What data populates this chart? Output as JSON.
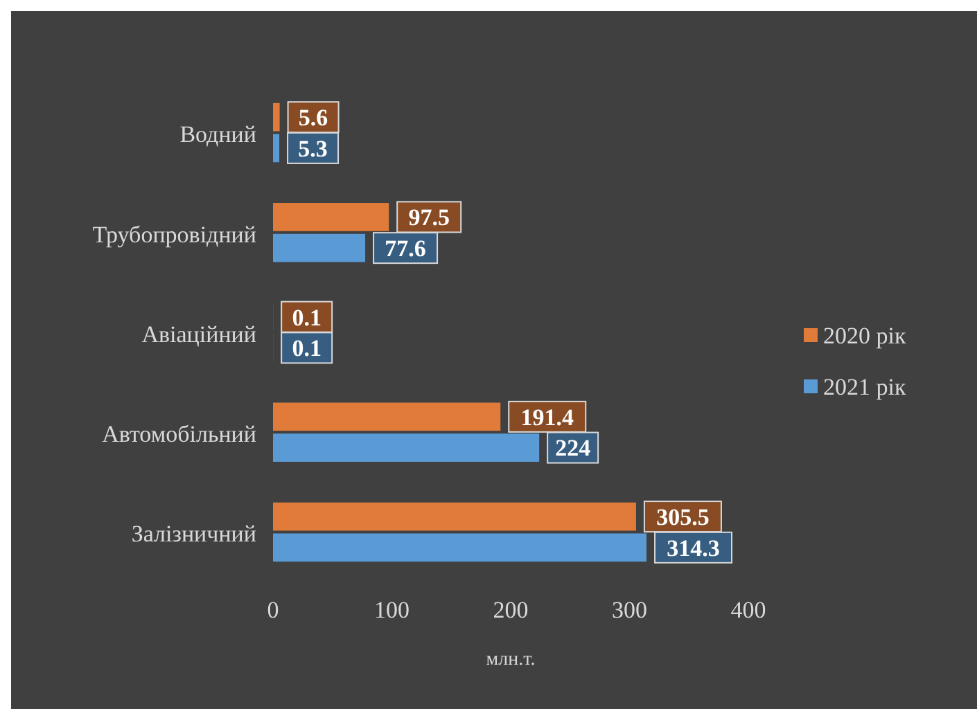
{
  "chart_data": {
    "type": "bar",
    "orientation": "horizontal",
    "xlabel": "млн.т.",
    "categories": [
      "Водний",
      "Трубопровідний",
      "Авіаційний",
      "Автомобільний",
      "Залізничний"
    ],
    "series": [
      {
        "name": "2020 рік",
        "color": "#e07b39",
        "values": [
          5.6,
          97.5,
          0.1,
          191.4,
          305.5
        ]
      },
      {
        "name": "2021 рік",
        "color": "#5b9bd5",
        "values": [
          5.3,
          77.6,
          0.1,
          224,
          314.3
        ]
      }
    ],
    "xlim": [
      0,
      400
    ],
    "xticks": [
      0,
      100,
      200,
      300,
      400
    ],
    "data_labels": true,
    "grid": false,
    "legend": "right"
  }
}
